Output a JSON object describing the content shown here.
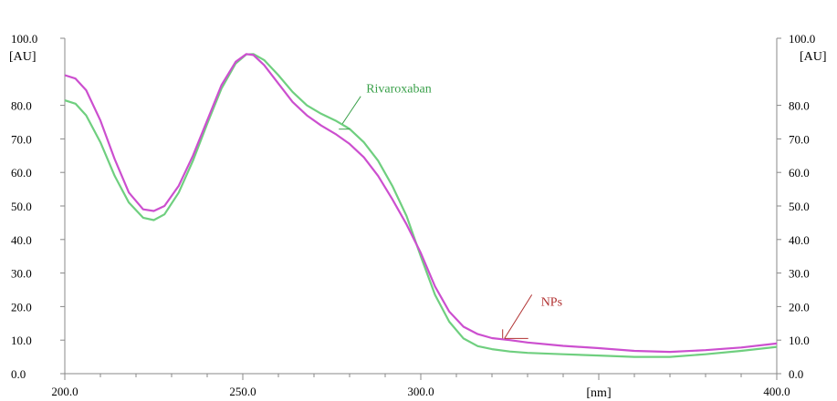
{
  "chart_data": {
    "type": "line",
    "x_unit_label": "[nm]",
    "y_unit_label": "[AU]",
    "xlim": [
      200.0,
      400.0
    ],
    "ylim": [
      0.0,
      100.0
    ],
    "x_ticks": [
      "200.0",
      "250.0",
      "300.0",
      "400.0"
    ],
    "y_ticks": [
      "0.0",
      "10.0",
      "20.0",
      "30.0",
      "40.0",
      "50.0",
      "60.0",
      "70.0",
      "80.0",
      "100.0"
    ],
    "grid": false,
    "series": [
      {
        "name": "Rivaroxaban",
        "color": "#6fcf7f",
        "x": [
          200,
          203,
          206,
          210,
          214,
          218,
          222,
          225,
          228,
          232,
          236,
          240,
          244,
          248,
          251,
          253,
          256,
          260,
          264,
          268,
          272,
          276,
          280,
          284,
          288,
          292,
          296,
          300,
          304,
          308,
          312,
          316,
          320,
          325,
          330,
          340,
          350,
          360,
          370,
          380,
          390,
          400
        ],
        "y": [
          81.5,
          80.5,
          77.0,
          69.0,
          59.0,
          51.0,
          46.5,
          45.8,
          47.5,
          54.0,
          63.5,
          74.5,
          85.0,
          92.5,
          95.2,
          95.3,
          93.5,
          89.0,
          84.0,
          80.0,
          77.5,
          75.5,
          73.0,
          69.0,
          63.5,
          56.0,
          47.0,
          35.0,
          23.5,
          15.5,
          10.5,
          8.2,
          7.3,
          6.6,
          6.2,
          5.8,
          5.4,
          5.0,
          5.0,
          5.8,
          6.8,
          8.0
        ]
      },
      {
        "name": "NPs",
        "color": "#cc4fcf",
        "x": [
          200,
          203,
          206,
          210,
          214,
          218,
          222,
          225,
          228,
          232,
          236,
          240,
          244,
          248,
          251,
          253,
          256,
          260,
          264,
          268,
          272,
          276,
          280,
          284,
          288,
          292,
          296,
          300,
          304,
          308,
          312,
          316,
          320,
          325,
          330,
          340,
          350,
          360,
          370,
          380,
          390,
          400
        ],
        "y": [
          89.0,
          88.0,
          84.5,
          75.5,
          64.0,
          54.0,
          49.0,
          48.5,
          50.0,
          56.0,
          65.0,
          75.5,
          86.0,
          93.0,
          95.3,
          95.0,
          92.0,
          86.5,
          81.0,
          77.0,
          74.0,
          71.5,
          68.5,
          64.5,
          59.0,
          52.0,
          44.5,
          36.0,
          26.0,
          18.5,
          14.0,
          11.8,
          10.6,
          10.0,
          9.3,
          8.3,
          7.6,
          6.8,
          6.5,
          7.0,
          7.8,
          9.0
        ]
      }
    ],
    "annotations": [
      {
        "text": "Rivaroxaban",
        "color": "#3aa04a",
        "points_to_x": 278,
        "points_to_y": 74.0
      },
      {
        "text": "NPs",
        "color": "#b03030",
        "points_to_x": 323,
        "points_to_y": 10.5
      }
    ]
  }
}
